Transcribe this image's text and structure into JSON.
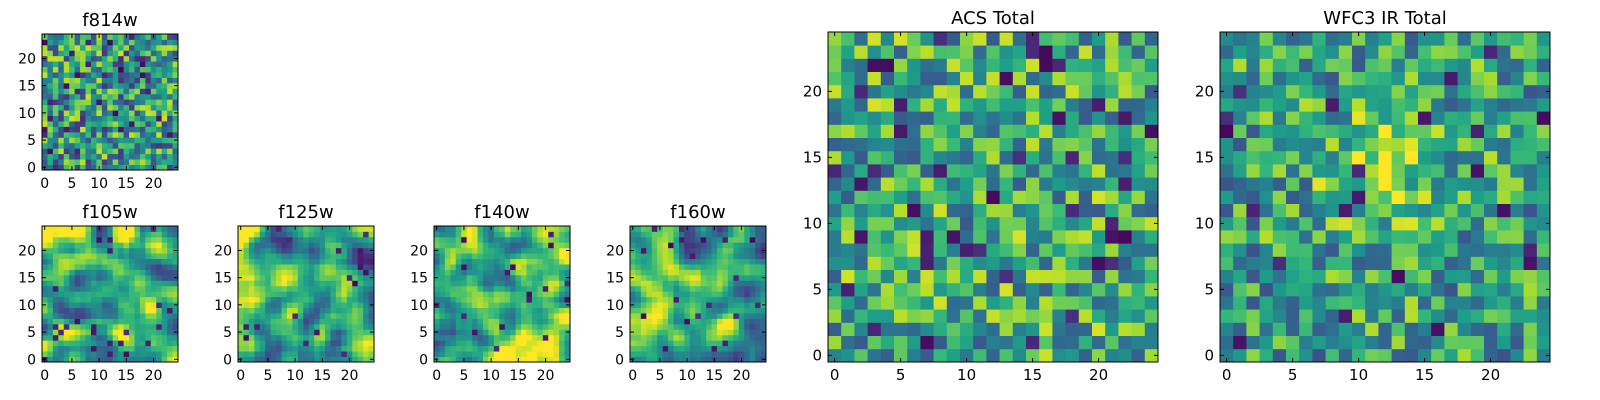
{
  "chart_data": [
    {
      "type": "heatmap",
      "title": "f814w",
      "colormap": "viridis",
      "xlim": [
        -0.5,
        24.5
      ],
      "ylim": [
        -0.5,
        24.5
      ],
      "origin": "lower",
      "xticks": [
        0,
        5,
        10,
        15,
        20
      ],
      "yticks": [
        0,
        5,
        10,
        15,
        20
      ],
      "xticklabels": [
        "0",
        "5",
        "10",
        "15",
        "20"
      ],
      "yticklabels": [
        "0",
        "5",
        "10",
        "15",
        "20"
      ],
      "grid_size": 25,
      "pattern": {
        "seed": 11,
        "smooth": 0,
        "base": 0.55,
        "spread": 0.22,
        "blob": null,
        "dark_spots": 0.06
      }
    },
    {
      "type": "heatmap",
      "title": "f105w",
      "colormap": "viridis",
      "xlim": [
        -0.5,
        24.5
      ],
      "ylim": [
        -0.5,
        24.5
      ],
      "origin": "lower",
      "xticks": [
        0,
        5,
        10,
        15,
        20
      ],
      "yticks": [
        0,
        5,
        10,
        15,
        20
      ],
      "xticklabels": [
        "0",
        "5",
        "10",
        "15",
        "20"
      ],
      "yticklabels": [
        "0",
        "5",
        "10",
        "15",
        "20"
      ],
      "grid_size": 25,
      "pattern": {
        "seed": 23,
        "smooth": 2,
        "base": 0.62,
        "spread": 0.2,
        "blob": null,
        "dark_spots": 0.03
      }
    },
    {
      "type": "heatmap",
      "title": "f125w",
      "colormap": "viridis",
      "xlim": [
        -0.5,
        24.5
      ],
      "ylim": [
        -0.5,
        24.5
      ],
      "origin": "lower",
      "xticks": [
        0,
        5,
        10,
        15,
        20
      ],
      "yticks": [
        0,
        5,
        10,
        15,
        20
      ],
      "xticklabels": [
        "0",
        "5",
        "10",
        "15",
        "20"
      ],
      "yticklabels": [
        "0",
        "5",
        "10",
        "15",
        "20"
      ],
      "grid_size": 25,
      "pattern": {
        "seed": 37,
        "smooth": 2,
        "base": 0.6,
        "spread": 0.2,
        "blob": null,
        "dark_spots": 0.03
      }
    },
    {
      "type": "heatmap",
      "title": "f140w",
      "colormap": "viridis",
      "xlim": [
        -0.5,
        24.5
      ],
      "ylim": [
        -0.5,
        24.5
      ],
      "origin": "lower",
      "xticks": [
        0,
        5,
        10,
        15,
        20
      ],
      "yticks": [
        0,
        5,
        10,
        15,
        20
      ],
      "xticklabels": [
        "0",
        "5",
        "10",
        "15",
        "20"
      ],
      "yticklabels": [
        "0",
        "5",
        "10",
        "15",
        "20"
      ],
      "grid_size": 25,
      "pattern": {
        "seed": 41,
        "smooth": 2,
        "base": 0.63,
        "spread": 0.18,
        "blob": {
          "cx": 16,
          "cy": 5,
          "r": 4,
          "amp": 0.3
        },
        "dark_spots": 0.02
      }
    },
    {
      "type": "heatmap",
      "title": "f160w",
      "colormap": "viridis",
      "xlim": [
        -0.5,
        24.5
      ],
      "ylim": [
        -0.5,
        24.5
      ],
      "origin": "lower",
      "xticks": [
        0,
        5,
        10,
        15,
        20
      ],
      "yticks": [
        0,
        5,
        10,
        15,
        20
      ],
      "xticklabels": [
        "0",
        "5",
        "10",
        "15",
        "20"
      ],
      "yticklabels": [
        "0",
        "5",
        "10",
        "15",
        "20"
      ],
      "grid_size": 25,
      "pattern": {
        "seed": 53,
        "smooth": 2,
        "base": 0.6,
        "spread": 0.2,
        "blob": null,
        "dark_spots": 0.04
      }
    },
    {
      "type": "heatmap",
      "title": "ACS Total",
      "colormap": "viridis",
      "xlim": [
        -0.5,
        24.5
      ],
      "ylim": [
        -0.5,
        24.5
      ],
      "origin": "lower",
      "xticks": [
        0,
        5,
        10,
        15,
        20
      ],
      "yticks": [
        0,
        5,
        10,
        15,
        20
      ],
      "xticklabels": [
        "0",
        "5",
        "10",
        "15",
        "20"
      ],
      "yticklabels": [
        "0",
        "5",
        "10",
        "15",
        "20"
      ],
      "grid_size": 25,
      "pattern": {
        "seed": 67,
        "smooth": 0,
        "base": 0.6,
        "spread": 0.2,
        "blob": null,
        "dark_spots": 0.05
      }
    },
    {
      "type": "heatmap",
      "title": "WFC3 IR Total",
      "colormap": "viridis",
      "xlim": [
        -0.5,
        24.5
      ],
      "ylim": [
        -0.5,
        24.5
      ],
      "origin": "lower",
      "xticks": [
        0,
        5,
        10,
        15,
        20
      ],
      "yticks": [
        0,
        5,
        10,
        15,
        20
      ],
      "xticklabels": [
        "0",
        "5",
        "10",
        "15",
        "20"
      ],
      "yticklabels": [
        "0",
        "5",
        "10",
        "15",
        "20"
      ],
      "grid_size": 25,
      "pattern": {
        "seed": 79,
        "smooth": 0,
        "base": 0.56,
        "spread": 0.18,
        "blob": {
          "cx": 12,
          "cy": 14,
          "r": 3,
          "amp": 0.32
        },
        "dark_spots": 0.05
      }
    }
  ]
}
